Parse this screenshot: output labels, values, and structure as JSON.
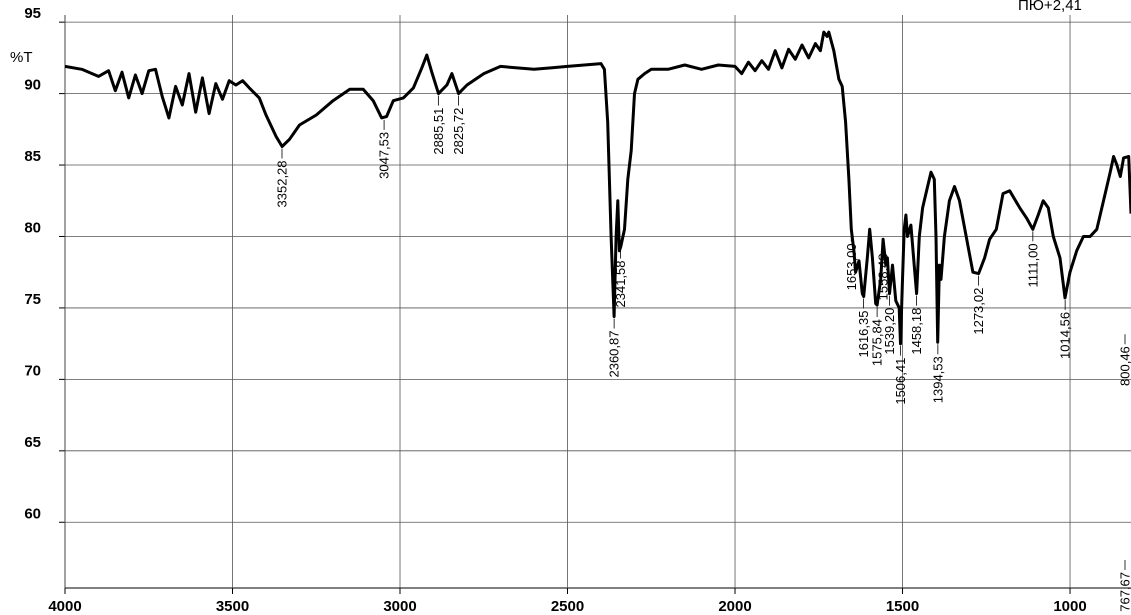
{
  "chart_data": {
    "type": "line",
    "y_label": "%T",
    "header_note": "ПЮ+2,41",
    "color": "#000000",
    "grid": true,
    "xlim": [
      4000,
      818
    ],
    "ylim": [
      55.4,
      95.5
    ],
    "xticks": [
      4000,
      3500,
      3000,
      2500,
      2000,
      1500,
      1000
    ],
    "yticks": [
      60,
      65,
      70,
      75,
      80,
      85,
      90,
      95
    ],
    "x": [
      4000,
      3950,
      3900,
      3870,
      3850,
      3830,
      3810,
      3790,
      3770,
      3750,
      3730,
      3710,
      3690,
      3670,
      3650,
      3630,
      3610,
      3590,
      3570,
      3550,
      3530,
      3510,
      3490,
      3470,
      3450,
      3420,
      3400,
      3370,
      3352,
      3330,
      3300,
      3250,
      3200,
      3150,
      3110,
      3080,
      3055,
      3040,
      3020,
      2990,
      2960,
      2935,
      2920,
      2905,
      2885,
      2860,
      2845,
      2825,
      2800,
      2750,
      2700,
      2650,
      2600,
      2550,
      2500,
      2450,
      2400,
      2390,
      2380,
      2370,
      2361,
      2355,
      2350,
      2345,
      2341,
      2330,
      2320,
      2310,
      2300,
      2290,
      2270,
      2250,
      2200,
      2150,
      2100,
      2050,
      2000,
      1980,
      1960,
      1940,
      1920,
      1900,
      1880,
      1860,
      1840,
      1820,
      1800,
      1780,
      1760,
      1745,
      1735,
      1725,
      1720,
      1705,
      1690,
      1680,
      1670,
      1660,
      1653,
      1645,
      1640,
      1630,
      1620,
      1616,
      1605,
      1598,
      1590,
      1580,
      1576,
      1565,
      1558,
      1550,
      1545,
      1539,
      1530,
      1520,
      1510,
      1506,
      1500,
      1495,
      1490,
      1485,
      1475,
      1465,
      1458,
      1450,
      1440,
      1425,
      1415,
      1405,
      1400,
      1395,
      1390,
      1385,
      1375,
      1360,
      1345,
      1330,
      1310,
      1290,
      1273,
      1255,
      1240,
      1220,
      1200,
      1180,
      1150,
      1130,
      1111,
      1095,
      1080,
      1065,
      1050,
      1030,
      1015,
      1000,
      980,
      960,
      940,
      920,
      900,
      880,
      870,
      860,
      850,
      840,
      825,
      818
    ],
    "values": [
      91.9,
      91.7,
      91.2,
      91.6,
      90.2,
      91.5,
      89.7,
      91.3,
      90.0,
      91.6,
      91.7,
      89.8,
      88.3,
      90.5,
      89.2,
      91.4,
      88.7,
      91.1,
      88.6,
      90.7,
      89.6,
      90.9,
      90.6,
      90.9,
      90.4,
      89.7,
      88.5,
      87.0,
      86.3,
      86.8,
      87.8,
      88.5,
      89.5,
      90.3,
      90.3,
      89.5,
      88.3,
      88.4,
      89.5,
      89.7,
      90.4,
      91.8,
      92.7,
      91.5,
      90.0,
      90.6,
      91.4,
      90.0,
      90.6,
      91.4,
      91.9,
      91.8,
      91.7,
      91.8,
      91.9,
      92.0,
      92.1,
      91.7,
      88.0,
      80.0,
      74.4,
      80.0,
      82.5,
      79.0,
      79.3,
      80.5,
      84.0,
      86.0,
      90.0,
      91.0,
      91.4,
      91.7,
      91.7,
      92.0,
      91.7,
      92.0,
      91.9,
      91.4,
      92.2,
      91.6,
      92.3,
      91.7,
      93.0,
      91.8,
      93.1,
      92.4,
      93.4,
      92.5,
      93.5,
      93.0,
      94.3,
      94.0,
      94.3,
      93.0,
      91.0,
      90.5,
      88.0,
      84.0,
      80.5,
      79.0,
      77.5,
      78.3,
      76.0,
      75.8,
      78.5,
      80.5,
      78.5,
      75.3,
      75.2,
      77.0,
      79.8,
      78.0,
      78.5,
      76.0,
      78.0,
      75.5,
      75.0,
      72.5,
      77.0,
      80.5,
      81.5,
      80.0,
      80.8,
      78.0,
      76.0,
      80.0,
      82.0,
      83.5,
      84.5,
      84.0,
      80.0,
      72.6,
      78.0,
      77.0,
      80.0,
      82.5,
      83.5,
      82.5,
      80.0,
      77.5,
      77.4,
      78.5,
      79.8,
      80.5,
      83.0,
      83.2,
      82.0,
      81.3,
      80.5,
      81.5,
      82.5,
      82.0,
      80.0,
      78.5,
      75.7,
      77.5,
      79.0,
      80.0,
      80.0,
      80.5,
      82.5,
      84.5,
      85.6,
      85.0,
      84.2,
      85.5,
      85.6,
      81.6
    ],
    "annotations": [
      {
        "x": 3352.28,
        "y": 86.3,
        "label": "3352,28"
      },
      {
        "x": 3047.53,
        "y": 88.3,
        "label": "3047,53"
      },
      {
        "x": 2885.51,
        "y": 90.0,
        "label": "2885,51"
      },
      {
        "x": 2825.72,
        "y": 90.0,
        "label": "2825,72"
      },
      {
        "x": 2360.87,
        "y": 74.4,
        "label": "2360,87"
      },
      {
        "x": 2341.58,
        "y": 79.3,
        "label": "2341,58"
      },
      {
        "x": 1653.0,
        "y": 80.5,
        "label": "1653,00"
      },
      {
        "x": 1616.35,
        "y": 75.8,
        "label": "1616,35"
      },
      {
        "x": 1575.84,
        "y": 75.2,
        "label": "1575,84"
      },
      {
        "x": 1558.48,
        "y": 79.8,
        "label": "1558,48"
      },
      {
        "x": 1539.2,
        "y": 76.0,
        "label": "1539,20"
      },
      {
        "x": 1506.41,
        "y": 72.5,
        "label": "1506,41"
      },
      {
        "x": 1458.18,
        "y": 76.0,
        "label": "1458,18"
      },
      {
        "x": 1394.53,
        "y": 72.6,
        "label": "1394,53"
      },
      {
        "x": 1273.02,
        "y": 77.4,
        "label": "1273,02"
      },
      {
        "x": 1111.0,
        "y": 80.5,
        "label": "1111,00"
      },
      {
        "x": 1014.56,
        "y": 75.7,
        "label": "1014,56"
      },
      {
        "x": 800.46,
        "y": 73.3,
        "label": "800,46"
      },
      {
        "x": 767.67,
        "y": 57.5,
        "label": "767,67"
      }
    ]
  }
}
